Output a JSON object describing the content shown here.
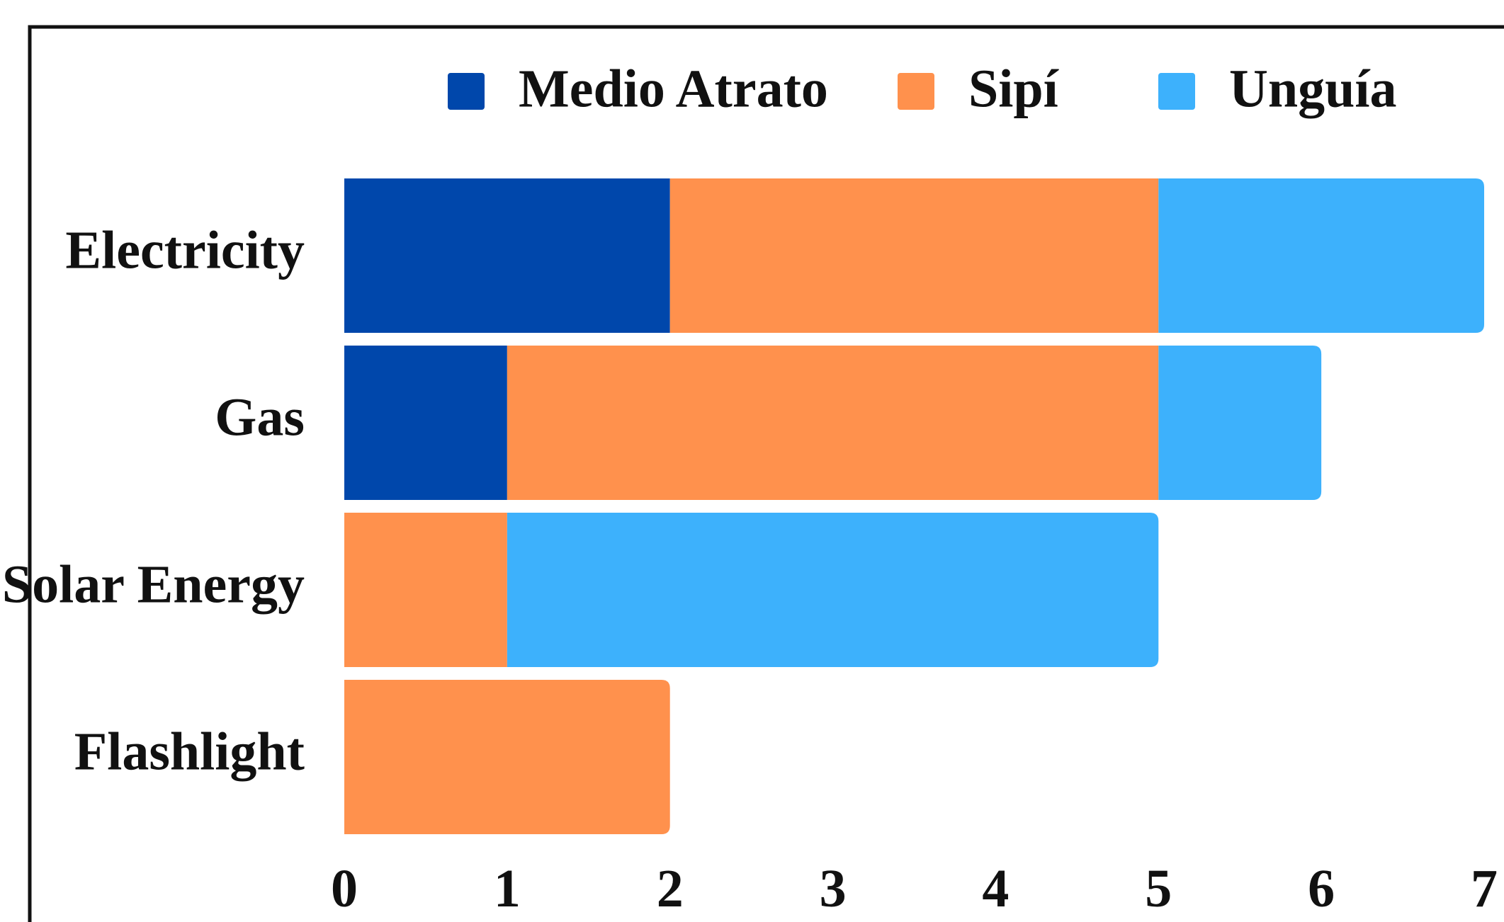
{
  "chart_data": {
    "type": "bar",
    "orientation": "horizontal",
    "stacked": true,
    "categories": [
      "Electricity",
      "Gas",
      "Solar Energy",
      "Flashlight"
    ],
    "series": [
      {
        "name": "Medio Atrato",
        "values": [
          2,
          1,
          0,
          0
        ],
        "color": "#0047ab"
      },
      {
        "name": "Sipí",
        "values": [
          3,
          4,
          1,
          2
        ],
        "color": "#ff914d"
      },
      {
        "name": "Unguía",
        "values": [
          2,
          1,
          4,
          0
        ],
        "color": "#3db1fc"
      }
    ],
    "x_ticks": [
      "0",
      "1",
      "2",
      "3",
      "4",
      "5",
      "6",
      "7"
    ],
    "xlim": [
      0,
      7
    ],
    "grid": false,
    "legend_position": "top"
  }
}
